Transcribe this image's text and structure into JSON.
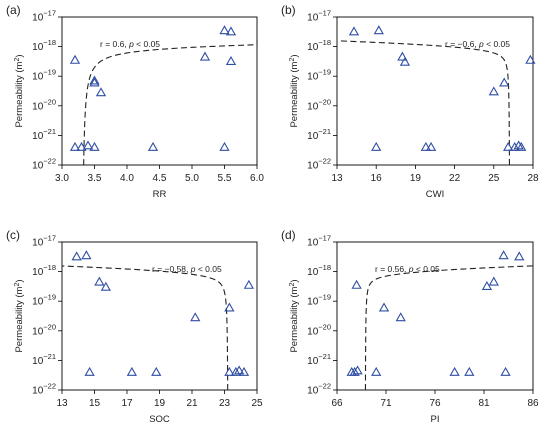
{
  "chart_data": [
    {
      "type": "scatter",
      "panel_label": "(a)",
      "xlabel": "RR",
      "ylabel": "Permeability (m²)",
      "ylabel_base": "Permeability (m",
      "ylabel_sup": "2",
      "ylabel_close": ")",
      "xlim": [
        3.0,
        6.0
      ],
      "xticks": [
        "3.0",
        "3.5",
        "4.0",
        "4.5",
        "5.0",
        "5.5",
        "6.0"
      ],
      "ylim_exp": [
        -22,
        -17
      ],
      "yscale": "log",
      "yticks": [
        -22,
        -21,
        -20,
        -19,
        -18,
        -17
      ],
      "annotation": {
        "r": "r = 0.6, ",
        "p": "p",
        "rest": " < 0.05"
      },
      "points": [
        {
          "x": 3.2,
          "y": 3.5e-19
        },
        {
          "x": 3.2,
          "y": 4e-22
        },
        {
          "x": 3.3,
          "y": 4e-22
        },
        {
          "x": 3.4,
          "y": 4.5e-22
        },
        {
          "x": 3.5,
          "y": 4e-22
        },
        {
          "x": 3.5,
          "y": 6e-20
        },
        {
          "x": 3.5,
          "y": 7e-20
        },
        {
          "x": 3.6,
          "y": 2.8e-20
        },
        {
          "x": 4.4,
          "y": 4e-22
        },
        {
          "x": 5.2,
          "y": 4.5e-19
        },
        {
          "x": 5.5,
          "y": 4e-22
        },
        {
          "x": 5.5,
          "y": 3.5e-18
        },
        {
          "x": 5.6,
          "y": 3.2e-18
        },
        {
          "x": 5.6,
          "y": 3.2e-19
        }
      ]
    },
    {
      "type": "scatter",
      "panel_label": "(b)",
      "xlabel": "CWI",
      "ylabel": "Permeability (m²)",
      "ylabel_base": "Permeability (m",
      "ylabel_sup": "2",
      "ylabel_close": ")",
      "xlim": [
        13,
        28
      ],
      "xticks": [
        "13",
        "16",
        "19",
        "22",
        "25",
        "28"
      ],
      "xtick_values": [
        13,
        16,
        19,
        22,
        25,
        28
      ],
      "ylim_exp": [
        -22,
        -17
      ],
      "yscale": "log",
      "yticks": [
        -22,
        -21,
        -20,
        -19,
        -18,
        -17
      ],
      "annotation": {
        "r": "r = −0.6, ",
        "p": "p",
        "rest": " < 0.05"
      },
      "points": [
        {
          "x": 14.3,
          "y": 3.2e-18
        },
        {
          "x": 16.2,
          "y": 3.5e-18
        },
        {
          "x": 16,
          "y": 4e-22
        },
        {
          "x": 18,
          "y": 4.5e-19
        },
        {
          "x": 18.2,
          "y": 3e-19
        },
        {
          "x": 19.8,
          "y": 4e-22
        },
        {
          "x": 20.2,
          "y": 4e-22
        },
        {
          "x": 25,
          "y": 3e-20
        },
        {
          "x": 25.8,
          "y": 6e-20
        },
        {
          "x": 26.1,
          "y": 4e-22
        },
        {
          "x": 26.6,
          "y": 4e-22
        },
        {
          "x": 26.9,
          "y": 4.5e-22
        },
        {
          "x": 27.1,
          "y": 4e-22
        },
        {
          "x": 27.8,
          "y": 3.5e-19
        }
      ]
    },
    {
      "type": "scatter",
      "panel_label": "(c)",
      "xlabel": "SOC",
      "ylabel": "Permeability (m²)",
      "ylabel_base": "Permeability (m",
      "ylabel_sup": "2",
      "ylabel_close": ")",
      "xlim": [
        13,
        25
      ],
      "xticks": [
        "13",
        "15",
        "17",
        "19",
        "21",
        "23",
        "25"
      ],
      "ylim_exp": [
        -22,
        -17
      ],
      "yscale": "log",
      "yticks": [
        -22,
        -21,
        -20,
        -19,
        -18,
        -17
      ],
      "annotation": {
        "r": "r = −0.58, ",
        "p": "p",
        "rest": " < 0.05"
      },
      "points": [
        {
          "x": 13.9,
          "y": 3.2e-18
        },
        {
          "x": 14.5,
          "y": 3.5e-18
        },
        {
          "x": 14.7,
          "y": 4e-22
        },
        {
          "x": 15.3,
          "y": 4.5e-19
        },
        {
          "x": 15.7,
          "y": 3e-19
        },
        {
          "x": 17.3,
          "y": 4e-22
        },
        {
          "x": 18.8,
          "y": 4e-22
        },
        {
          "x": 21.2,
          "y": 2.8e-20
        },
        {
          "x": 23.3,
          "y": 6e-20
        },
        {
          "x": 23.3,
          "y": 4e-22
        },
        {
          "x": 23.7,
          "y": 4e-22
        },
        {
          "x": 23.9,
          "y": 4.5e-22
        },
        {
          "x": 24.2,
          "y": 4e-22
        },
        {
          "x": 24.5,
          "y": 3.5e-19
        }
      ]
    },
    {
      "type": "scatter",
      "panel_label": "(d)",
      "xlabel": "PI",
      "ylabel": "Permeability (m²)",
      "ylabel_base": "Permeability (m",
      "ylabel_sup": "2",
      "ylabel_close": ")",
      "xlim": [
        66,
        86
      ],
      "xticks": [
        "66",
        "71",
        "76",
        "81",
        "86"
      ],
      "xtick_values": [
        66,
        71,
        76,
        81,
        86
      ],
      "ylim_exp": [
        -22,
        -17
      ],
      "yscale": "log",
      "yticks": [
        -22,
        -21,
        -20,
        -19,
        -18,
        -17
      ],
      "annotation": {
        "r": "r = 0.56, ",
        "p": "p",
        "rest": " < 0.05"
      },
      "points": [
        {
          "x": 67.5,
          "y": 4e-22
        },
        {
          "x": 67.8,
          "y": 4e-22
        },
        {
          "x": 68.1,
          "y": 4.5e-22
        },
        {
          "x": 68,
          "y": 3.5e-19
        },
        {
          "x": 70,
          "y": 4e-22
        },
        {
          "x": 70.8,
          "y": 6e-20
        },
        {
          "x": 72.5,
          "y": 2.8e-20
        },
        {
          "x": 78,
          "y": 4e-22
        },
        {
          "x": 79.5,
          "y": 4e-22
        },
        {
          "x": 81.3,
          "y": 3.2e-19
        },
        {
          "x": 82,
          "y": 4.5e-19
        },
        {
          "x": 83,
          "y": 3.5e-18
        },
        {
          "x": 83.2,
          "y": 4e-22
        },
        {
          "x": 84.6,
          "y": 3.2e-18
        }
      ]
    }
  ]
}
